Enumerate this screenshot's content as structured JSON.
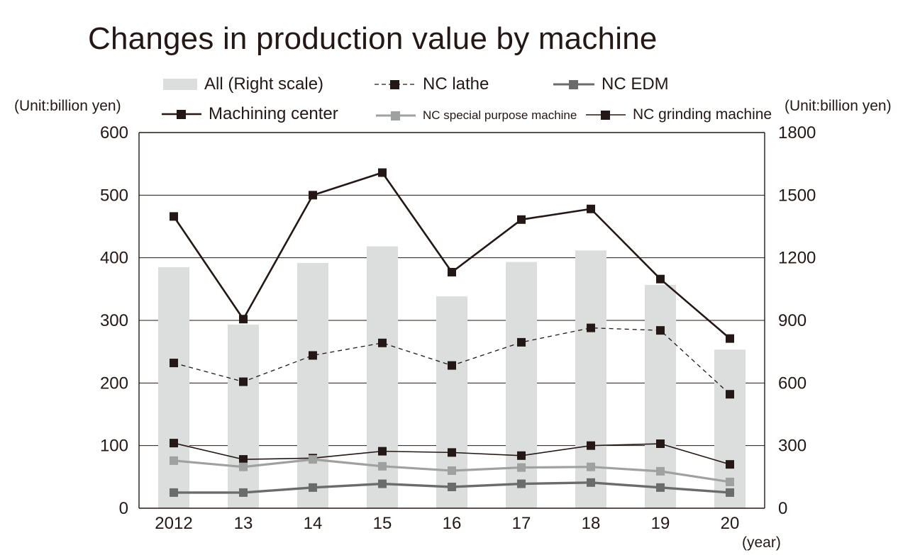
{
  "chart_data": {
    "type": "bar+line",
    "title": "Changes in production value by machine",
    "left_axis_label": "(Unit:billion yen)",
    "right_axis_label": "(Unit:billion yen)",
    "x_axis_label": "(year)",
    "categories": [
      "2012",
      "13",
      "14",
      "15",
      "16",
      "17",
      "18",
      "19",
      "20"
    ],
    "left_ylim": [
      0,
      600
    ],
    "left_ticks": [
      0,
      100,
      200,
      300,
      400,
      500,
      600
    ],
    "right_ylim": [
      0,
      1800
    ],
    "right_ticks": [
      0,
      300,
      600,
      900,
      1200,
      1500,
      1800
    ],
    "grid": true,
    "bars": {
      "name": "All (Right scale)",
      "axis": "right",
      "color": "#dcdddd",
      "values": [
        1155,
        880,
        1175,
        1255,
        1015,
        1180,
        1235,
        1070,
        760
      ]
    },
    "series": [
      {
        "name": "Machining center",
        "axis": "left",
        "color": "#231815",
        "style": "solid",
        "width": 2.6,
        "values": [
          466,
          302,
          500,
          536,
          377,
          461,
          478,
          366,
          271
        ]
      },
      {
        "name": "NC lathe",
        "axis": "left",
        "color": "#231815",
        "style": "dashed",
        "width": 1.3,
        "values": [
          232,
          202,
          244,
          264,
          228,
          265,
          288,
          284,
          182
        ]
      },
      {
        "name": "NC grinding machine",
        "axis": "left",
        "color": "#231815",
        "style": "solid",
        "width": 1.6,
        "values": [
          104,
          78,
          80,
          91,
          89,
          84,
          100,
          103,
          70
        ]
      },
      {
        "name": "NC special purpose machine",
        "axis": "left",
        "color": "#9fa0a0",
        "style": "solid",
        "width": 3.2,
        "values": [
          76,
          66,
          78,
          67,
          60,
          65,
          66,
          59,
          42
        ]
      },
      {
        "name": "NC EDM",
        "axis": "left",
        "color": "#6b6b6b",
        "style": "solid",
        "width": 3.4,
        "values": [
          25,
          25,
          33,
          39,
          34,
          39,
          41,
          33,
          25
        ]
      }
    ],
    "legend": {
      "all": "All (Right scale)",
      "nc_lathe": "NC lathe",
      "nc_edm": "NC EDM",
      "machining_center": "Machining center",
      "nc_special": "NC special purpose machine",
      "nc_grinding": "NC grinding machine"
    }
  }
}
